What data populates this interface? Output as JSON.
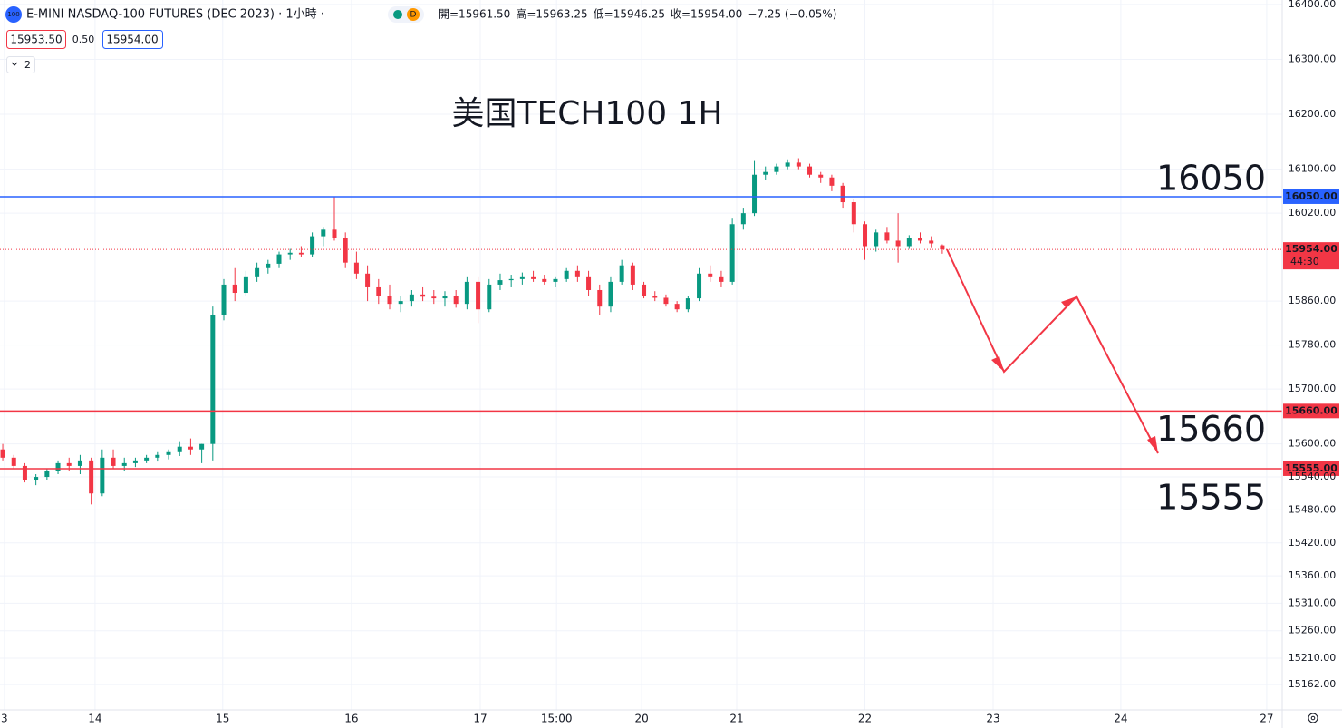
{
  "header": {
    "badge": "100",
    "symbol": "E-MINI NASDAQ-100 FUTURES (DEC 2023) · 1小時 ·",
    "interval_badge": "D",
    "ohlc": [
      "開=15961.50",
      "高=15963.25",
      "低=15946.25",
      "收=15954.00",
      "−7.25 (−0.05%)"
    ],
    "bid": "15953.50",
    "spread": "0.50",
    "ask": "15954.00",
    "indicators": "2"
  },
  "chart_data": {
    "type": "candlestick",
    "title": "美国TECH100 1H",
    "x": [
      0,
      2,
      4,
      6,
      8,
      10,
      12,
      14,
      16,
      18,
      20,
      22,
      24,
      26,
      28,
      30,
      32,
      34,
      36,
      38,
      40,
      42,
      44,
      46,
      48,
      50,
      52,
      54,
      56,
      58,
      60,
      62,
      64,
      66,
      68,
      70,
      72,
      74,
      76,
      78,
      80,
      82,
      84,
      86,
      88,
      90,
      92,
      94,
      96,
      98,
      100,
      102,
      104,
      106,
      108,
      110,
      112,
      114,
      116,
      118,
      120,
      122,
      124,
      126,
      128,
      130,
      132,
      134,
      136,
      138,
      140,
      142,
      144,
      146,
      148,
      150,
      152,
      154,
      156,
      158,
      160,
      162,
      164,
      166,
      168,
      170
    ],
    "open": [
      15590,
      15575,
      15560,
      15535,
      15540,
      15550,
      15565,
      15560,
      15570,
      15510,
      15575,
      15560,
      15565,
      15570,
      15575,
      15580,
      15585,
      15595,
      15590,
      15600,
      15835,
      15890,
      15875,
      15905,
      15920,
      15928,
      15945,
      15948,
      15945,
      15978,
      15990,
      15975,
      15930,
      15910,
      15885,
      15870,
      15855,
      15860,
      15872,
      15868,
      15865,
      15870,
      15855,
      15895,
      15845,
      15890,
      15898,
      15900,
      15905,
      15900,
      15895,
      15900,
      15915,
      15905,
      15880,
      15850,
      15895,
      15925,
      15890,
      15870,
      15866,
      15855,
      15845,
      15865,
      15910,
      15905,
      15895,
      16000,
      16020,
      16090,
      16095,
      16105,
      16112,
      16105,
      16090,
      16085,
      16070,
      16040,
      16000,
      15960,
      15985,
      15970,
      15960,
      15975,
      15970,
      15961.5
    ],
    "high": [
      15600,
      15580,
      15565,
      15545,
      15555,
      15570,
      15575,
      15580,
      15575,
      15590,
      15590,
      15575,
      15575,
      15580,
      15585,
      15590,
      15605,
      15610,
      15600,
      15850,
      15900,
      15920,
      15915,
      15930,
      15935,
      15950,
      15955,
      15960,
      15985,
      15995,
      16050,
      15985,
      15950,
      15925,
      15900,
      15890,
      15870,
      15880,
      15885,
      15880,
      15878,
      15880,
      15905,
      15905,
      15900,
      15910,
      15908,
      15912,
      15915,
      15908,
      15905,
      15920,
      15925,
      15915,
      15890,
      15905,
      15935,
      15930,
      15895,
      15878,
      15872,
      15860,
      15870,
      15920,
      15925,
      15915,
      16010,
      16030,
      16115,
      16105,
      16110,
      16118,
      16120,
      16110,
      16095,
      16090,
      16075,
      16045,
      16005,
      15990,
      15995,
      16020,
      15980,
      15985,
      15978,
      15963.25
    ],
    "low": [
      15570,
      15555,
      15530,
      15525,
      15535,
      15545,
      15550,
      15545,
      15490,
      15505,
      15555,
      15550,
      15558,
      15565,
      15568,
      15572,
      15578,
      15580,
      15565,
      15570,
      15825,
      15860,
      15870,
      15895,
      15910,
      15920,
      15935,
      15940,
      15940,
      15960,
      15970,
      15920,
      15900,
      15860,
      15855,
      15845,
      15840,
      15850,
      15860,
      15855,
      15850,
      15848,
      15845,
      15820,
      15840,
      15880,
      15885,
      15890,
      15895,
      15890,
      15885,
      15895,
      15895,
      15870,
      15835,
      15840,
      15890,
      15880,
      15865,
      15860,
      15850,
      15840,
      15840,
      15860,
      15895,
      15885,
      15890,
      15990,
      16015,
      16080,
      16090,
      16100,
      16100,
      16085,
      16075,
      16060,
      16030,
      15985,
      15935,
      15950,
      15965,
      15930,
      15955,
      15965,
      15958,
      15946.25
    ],
    "close": [
      15575,
      15560,
      15535,
      15540,
      15550,
      15565,
      15560,
      15570,
      15510,
      15575,
      15560,
      15565,
      15570,
      15575,
      15580,
      15585,
      15595,
      15590,
      15600,
      15835,
      15890,
      15875,
      15905,
      15920,
      15928,
      15945,
      15948,
      15945,
      15978,
      15990,
      15975,
      15930,
      15910,
      15885,
      15870,
      15855,
      15860,
      15872,
      15868,
      15865,
      15870,
      15855,
      15895,
      15845,
      15890,
      15898,
      15900,
      15905,
      15900,
      15895,
      15900,
      15915,
      15905,
      15880,
      15850,
      15895,
      15925,
      15890,
      15870,
      15866,
      15855,
      15845,
      15865,
      15910,
      15905,
      15895,
      16000,
      16020,
      16090,
      16095,
      16105,
      16112,
      16105,
      16090,
      16085,
      16070,
      16040,
      16000,
      15960,
      15985,
      15970,
      15960,
      15975,
      15970,
      15965,
      15954
    ],
    "up_color": "#089981",
    "down_color": "#f23645",
    "xlim": [
      -0.5,
      231.5
    ],
    "ylim": [
      15116,
      16408
    ],
    "xticks": [
      {
        "value": 0.3,
        "label": "3"
      },
      {
        "value": 16.7,
        "label": "14"
      },
      {
        "value": 39.8,
        "label": "15"
      },
      {
        "value": 63.1,
        "label": "16"
      },
      {
        "value": 86.4,
        "label": "17"
      },
      {
        "value": 100.2,
        "label": "15:00"
      },
      {
        "value": 115.6,
        "label": "20"
      },
      {
        "value": 132.8,
        "label": "21"
      },
      {
        "value": 156,
        "label": "22"
      },
      {
        "value": 179.2,
        "label": "23"
      },
      {
        "value": 202.3,
        "label": "24"
      },
      {
        "value": 228.7,
        "label": "27"
      }
    ],
    "yticks": [
      {
        "value": 16400,
        "label": "16400.00"
      },
      {
        "value": 16300,
        "label": "16300.00"
      },
      {
        "value": 16200,
        "label": "16200.00"
      },
      {
        "value": 16100,
        "label": "16100.00"
      },
      {
        "value": 16020,
        "label": "16020.00"
      },
      {
        "value": 15860,
        "label": "15860.00"
      },
      {
        "value": 15780,
        "label": "15780.00"
      },
      {
        "value": 15700,
        "label": "15700.00"
      },
      {
        "value": 15600,
        "label": "15600.00"
      },
      {
        "value": 15540,
        "label": "15540.00"
      },
      {
        "value": 15480,
        "label": "15480.00"
      },
      {
        "value": 15420,
        "label": "15420.00"
      },
      {
        "value": 15360,
        "label": "15360.00"
      },
      {
        "value": 15310,
        "label": "15310.00"
      },
      {
        "value": 15260,
        "label": "15260.00"
      },
      {
        "value": 15210,
        "label": "15210.00"
      },
      {
        "value": 15162,
        "label": "15162.00"
      }
    ],
    "grid": true,
    "levels": [
      {
        "value": 16050,
        "label": "16050.00",
        "text": "16050",
        "color": "#2962ff"
      },
      {
        "value": 15660,
        "label": "15660.00",
        "text": "15660",
        "color": "#f23645"
      },
      {
        "value": 15555,
        "label": "15555.00",
        "text": "15555",
        "color": "#f23645"
      }
    ],
    "last": {
      "value": 15954,
      "label": "15954.00",
      "countdown": "44:30",
      "color": "#f23645"
    }
  }
}
